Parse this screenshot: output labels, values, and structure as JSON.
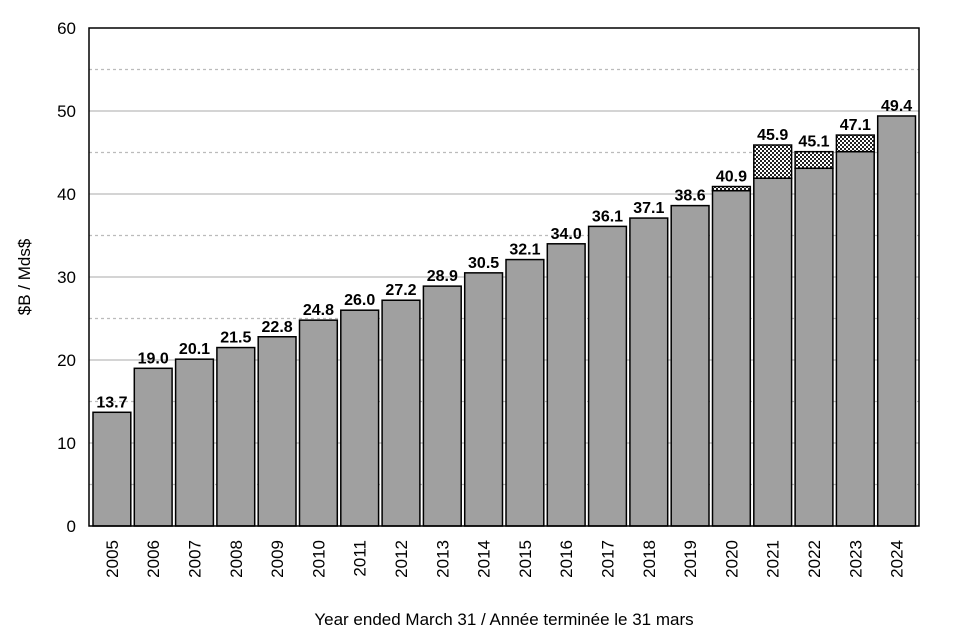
{
  "chart_data": {
    "type": "bar",
    "categories": [
      "2005",
      "2006",
      "2007",
      "2008",
      "2009",
      "2010",
      "2011",
      "2012",
      "2013",
      "2014",
      "2015",
      "2016",
      "2017",
      "2018",
      "2019",
      "2020",
      "2021",
      "2022",
      "2023",
      "2024"
    ],
    "series": [
      {
        "values": [
          13.7,
          19.0,
          20.1,
          21.5,
          22.8,
          24.8,
          26.0,
          27.2,
          28.9,
          30.5,
          32.1,
          34.0,
          36.1,
          37.1,
          38.6,
          40.4,
          41.9,
          43.1,
          45.1,
          49.4
        ]
      },
      {
        "values": [
          0,
          0,
          0,
          0,
          0,
          0,
          0,
          0,
          0,
          0,
          0,
          0,
          0,
          0,
          0,
          0.5,
          4.0,
          2.0,
          2.0,
          0
        ]
      }
    ],
    "labels": [
      "13.7",
      "19.0",
      "20.1",
      "21.5",
      "22.8",
      "24.8",
      "26.0",
      "27.2",
      "28.9",
      "30.5",
      "32.1",
      "34.0",
      "36.1",
      "37.1",
      "38.6",
      "40.9",
      "45.9",
      "45.1",
      "47.1",
      "49.4"
    ],
    "xlabel": "Year ended March 31 / Année terminée le 31 mars",
    "ylabel": "$B / Mds$",
    "ylim": [
      0,
      60
    ],
    "yticks": [
      0,
      10,
      20,
      30,
      40,
      50,
      60
    ],
    "minor_gridlines": [
      5,
      15,
      25,
      35,
      45,
      55
    ],
    "grid": true,
    "stacked": true,
    "colors": {
      "bar": "#a0a0a0",
      "stroke": "#000000",
      "grid": "#bbbbbb"
    }
  }
}
